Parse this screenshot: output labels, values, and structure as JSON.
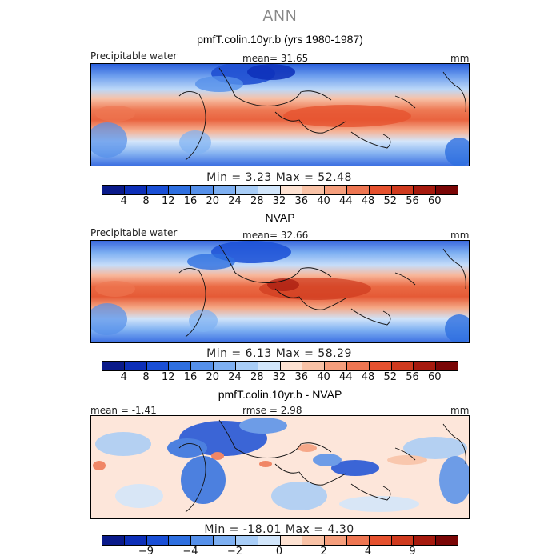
{
  "season_title": "ANN",
  "panels": [
    {
      "title": "pmfT.colin.10yr.b (yrs 1980-1987)",
      "left_label": "Precipitable water",
      "center_label": "mean=  31.65",
      "units": "mm",
      "minmax": "Min =   3.23 Max =  52.48",
      "kind": "abs"
    },
    {
      "title": "NVAP",
      "left_label": "Precipitable water",
      "center_label": "mean=  32.66",
      "units": "mm",
      "minmax": "Min =   6.13 Max =  58.29",
      "kind": "abs"
    },
    {
      "title": "pmfT.colin.10yr.b - NVAP",
      "left_label": "mean =  -1.41",
      "center_label": "rmse =   2.98",
      "units": "mm",
      "minmax": "Min = -18.01 Max =   4.30",
      "kind": "diff"
    }
  ],
  "colorbar_abs": {
    "colors": [
      "#0a1a8a",
      "#0d2fb8",
      "#1a4fd6",
      "#2e6fe0",
      "#5590ea",
      "#7eb0f2",
      "#a8cdf7",
      "#d2e6fb",
      "#fde2d2",
      "#f9c2a6",
      "#f59e7c",
      "#ee7652",
      "#e5512e",
      "#cf3a1e",
      "#a61a0e",
      "#7a0606"
    ],
    "ticks": [
      "4",
      "8",
      "12",
      "16",
      "20",
      "24",
      "28",
      "32",
      "36",
      "40",
      "44",
      "48",
      "52",
      "56",
      "60"
    ]
  },
  "colorbar_diff": {
    "colors": [
      "#0a1a8a",
      "#0d2fb8",
      "#1a4fd6",
      "#2e6fe0",
      "#5590ea",
      "#7eb0f2",
      "#a8cdf7",
      "#d2e6fb",
      "#fde2d2",
      "#f9c2a6",
      "#f59e7c",
      "#ee7652",
      "#e5512e",
      "#cf3a1e",
      "#a61a0e",
      "#7a0606"
    ],
    "ticks": [
      "−9",
      "−4",
      "−2",
      "0",
      "2",
      "4",
      "9"
    ]
  }
}
